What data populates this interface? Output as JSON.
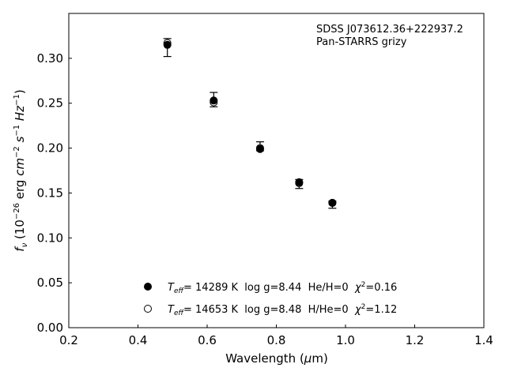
{
  "chart_data": {
    "type": "scatter",
    "title": "",
    "annotation": {
      "line1": "SDSS J073612.36+222937.2",
      "line2": "Pan-STARRS grizy"
    },
    "xlabel": "Wavelength (μm)",
    "ylabel": "f_ν (10^-26 erg cm^-2 s^-1 Hz^-1)",
    "xlim": [
      0.2,
      1.4
    ],
    "ylim": [
      0.0,
      0.35
    ],
    "xticks": [
      "0.2",
      "0.4",
      "0.6",
      "0.8",
      "1.0",
      "1.2",
      "1.4"
    ],
    "yticks": [
      "0.00",
      "0.05",
      "0.10",
      "0.15",
      "0.20",
      "0.25",
      "0.30"
    ],
    "grid": false,
    "legend_position": "bottom-center",
    "observed": {
      "x": [
        0.485,
        0.619,
        0.753,
        0.866,
        0.962
      ],
      "y": [
        0.312,
        0.254,
        0.202,
        0.16,
        0.137
      ],
      "err": [
        0.01,
        0.008,
        0.005,
        0.005,
        0.004
      ]
    },
    "series": [
      {
        "name": "T_eff= 14289 K  log g=8.44  He/H=0  χ²=0.16",
        "marker": "filled-circle",
        "x": [
          0.485,
          0.619,
          0.753,
          0.866,
          0.962
        ],
        "y": [
          0.315,
          0.253,
          0.199,
          0.162,
          0.139
        ]
      },
      {
        "name": "T_eff= 14653 K  log g=8.48  H/He=0  χ²=1.12",
        "marker": "open-circle",
        "x": [
          0.485,
          0.619,
          0.753,
          0.866,
          0.962
        ],
        "y": [
          0.317,
          0.251,
          0.2,
          0.161,
          0.139
        ]
      }
    ],
    "legend": [
      {
        "teff": "T",
        "sub": "eff",
        "rest": "= 14289 K  log g=8.44  He/H=0  ",
        "chi": "χ",
        "chisup": "2",
        "chival": "=0.16"
      },
      {
        "teff": "T",
        "sub": "eff",
        "rest": "= 14653 K  log g=8.48  H/He=0  ",
        "chi": "χ",
        "chisup": "2",
        "chival": "=1.12"
      }
    ]
  }
}
